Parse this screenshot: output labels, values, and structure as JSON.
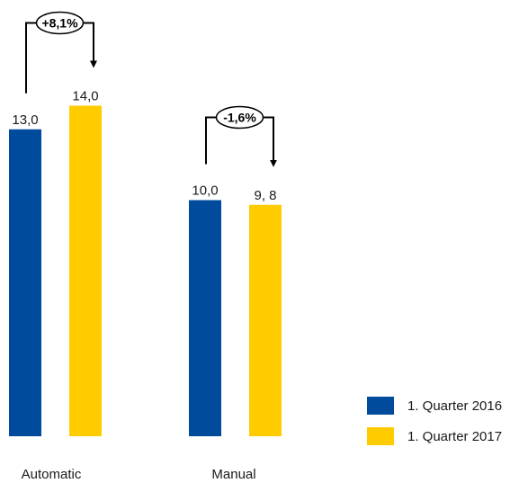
{
  "chart_data": {
    "type": "bar",
    "categories": [
      "Automatic",
      "Manual"
    ],
    "series": [
      {
        "name": "1. Quarter 2016",
        "values": [
          13.0,
          10.0
        ],
        "labels": [
          "13,0",
          "10,0"
        ],
        "color": "#004b9b"
      },
      {
        "name": "1. Quarter 2017",
        "values": [
          14.0,
          9.8
        ],
        "labels": [
          "14,0",
          "9, 8"
        ],
        "color": "#ffcc00"
      }
    ],
    "changes": [
      "+8,1%",
      "-1,6%"
    ],
    "ylim": [
      0,
      14
    ],
    "grid": false,
    "legend_position": "bottom-right"
  }
}
